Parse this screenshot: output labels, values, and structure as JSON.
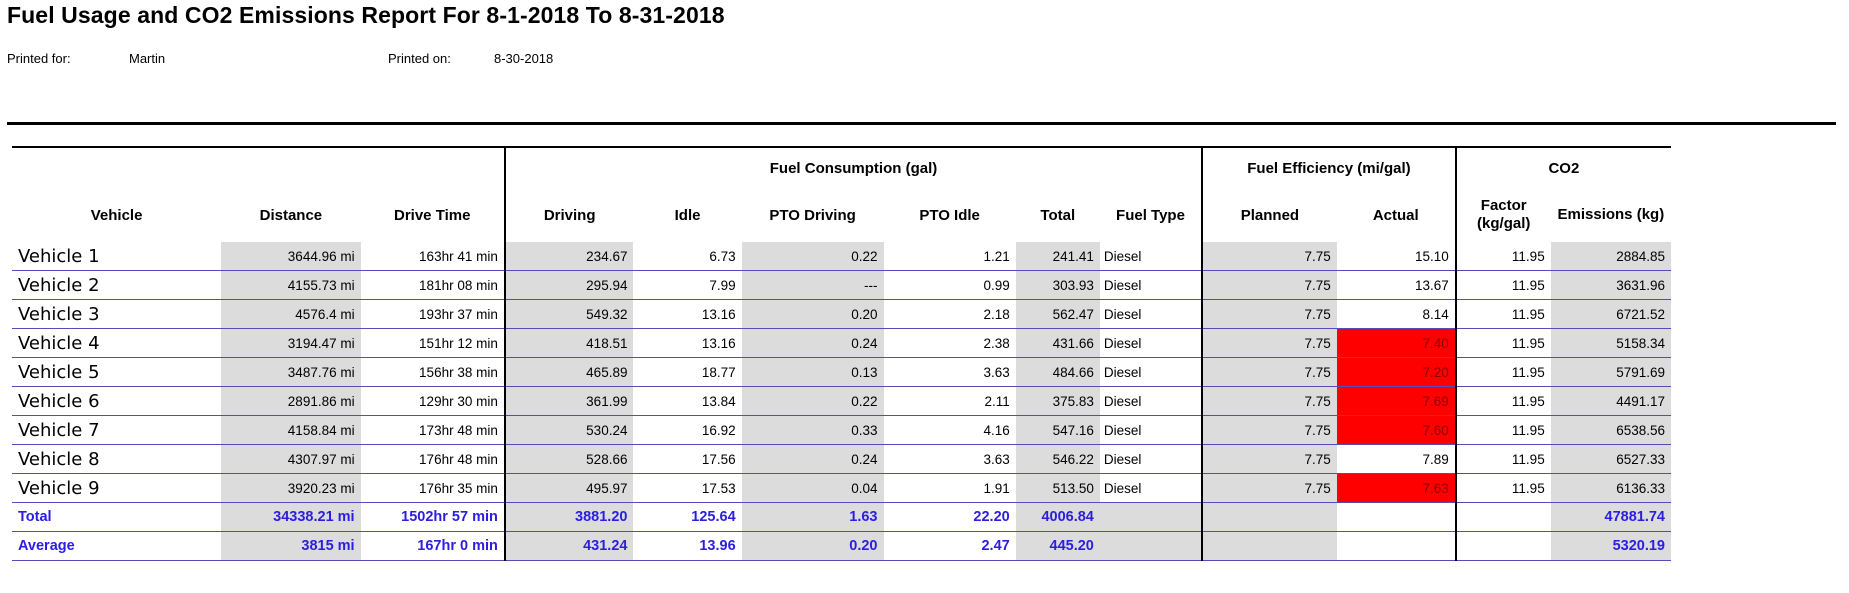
{
  "title": "Fuel Usage and CO2 Emissions Report For 8-1-2018 To 8-31-2018",
  "printed_for_label": "Printed for:",
  "printed_for_value": "Martin",
  "printed_on_label": "Printed on:",
  "printed_on_value": "8-30-2018",
  "headers": {
    "group_fuel_consumption": "Fuel Consumption (gal)",
    "group_fuel_efficiency": "Fuel Efficiency (mi/gal)",
    "group_co2": "CO2",
    "vehicle": "Vehicle",
    "distance": "Distance",
    "drive_time": "Drive Time",
    "driving": "Driving",
    "idle": "Idle",
    "pto_driving": "PTO Driving",
    "pto_idle": "PTO Idle",
    "total": "Total",
    "fuel_type": "Fuel Type",
    "planned": "Planned",
    "actual": "Actual",
    "factor": "Factor (kg/gal)",
    "emissions": "Emissions (kg)"
  },
  "colors": {
    "below_planned_highlight": "#ff0000",
    "summary_text": "#2b1ee0",
    "shaded_cell": "#dcdcdc"
  },
  "rows": [
    {
      "vehicle": "Vehicle 1",
      "distance": "3644.96 mi",
      "drive_time": "163hr 41 min",
      "driving": "234.67",
      "idle": "6.73",
      "pto_driving": "0.22",
      "pto_idle": "1.21",
      "total": "241.41",
      "fuel_type": "Diesel",
      "planned": "7.75",
      "actual": "15.10",
      "factor": "11.95",
      "emissions": "2884.85",
      "below_planned": false
    },
    {
      "vehicle": "Vehicle 2",
      "distance": "4155.73 mi",
      "drive_time": "181hr 08 min",
      "driving": "295.94",
      "idle": "7.99",
      "pto_driving": "---",
      "pto_idle": "0.99",
      "total": "303.93",
      "fuel_type": "Diesel",
      "planned": "7.75",
      "actual": "13.67",
      "factor": "11.95",
      "emissions": "3631.96",
      "below_planned": false
    },
    {
      "vehicle": "Vehicle 3",
      "distance": "4576.4 mi",
      "drive_time": "193hr 37 min",
      "driving": "549.32",
      "idle": "13.16",
      "pto_driving": "0.20",
      "pto_idle": "2.18",
      "total": "562.47",
      "fuel_type": "Diesel",
      "planned": "7.75",
      "actual": "8.14",
      "factor": "11.95",
      "emissions": "6721.52",
      "below_planned": false
    },
    {
      "vehicle": "Vehicle 4",
      "distance": "3194.47 mi",
      "drive_time": "151hr 12 min",
      "driving": "418.51",
      "idle": "13.16",
      "pto_driving": "0.24",
      "pto_idle": "2.38",
      "total": "431.66",
      "fuel_type": "Diesel",
      "planned": "7.75",
      "actual": "7.40",
      "factor": "11.95",
      "emissions": "5158.34",
      "below_planned": true
    },
    {
      "vehicle": "Vehicle 5",
      "distance": "3487.76 mi",
      "drive_time": "156hr 38 min",
      "driving": "465.89",
      "idle": "18.77",
      "pto_driving": "0.13",
      "pto_idle": "3.63",
      "total": "484.66",
      "fuel_type": "Diesel",
      "planned": "7.75",
      "actual": "7.20",
      "factor": "11.95",
      "emissions": "5791.69",
      "below_planned": true
    },
    {
      "vehicle": "Vehicle 6",
      "distance": "2891.86 mi",
      "drive_time": "129hr 30 min",
      "driving": "361.99",
      "idle": "13.84",
      "pto_driving": "0.22",
      "pto_idle": "2.11",
      "total": "375.83",
      "fuel_type": "Diesel",
      "planned": "7.75",
      "actual": "7.69",
      "factor": "11.95",
      "emissions": "4491.17",
      "below_planned": true
    },
    {
      "vehicle": "Vehicle 7",
      "distance": "4158.84 mi",
      "drive_time": "173hr 48 min",
      "driving": "530.24",
      "idle": "16.92",
      "pto_driving": "0.33",
      "pto_idle": "4.16",
      "total": "547.16",
      "fuel_type": "Diesel",
      "planned": "7.75",
      "actual": "7.60",
      "factor": "11.95",
      "emissions": "6538.56",
      "below_planned": true
    },
    {
      "vehicle": "Vehicle 8",
      "distance": "4307.97 mi",
      "drive_time": "176hr 48 min",
      "driving": "528.66",
      "idle": "17.56",
      "pto_driving": "0.24",
      "pto_idle": "3.63",
      "total": "546.22",
      "fuel_type": "Diesel",
      "planned": "7.75",
      "actual": "7.89",
      "factor": "11.95",
      "emissions": "6527.33",
      "below_planned": false
    },
    {
      "vehicle": "Vehicle 9",
      "distance": "3920.23 mi",
      "drive_time": "176hr 35 min",
      "driving": "495.97",
      "idle": "17.53",
      "pto_driving": "0.04",
      "pto_idle": "1.91",
      "total": "513.50",
      "fuel_type": "Diesel",
      "planned": "7.75",
      "actual": "7.63",
      "factor": "11.95",
      "emissions": "6136.33",
      "below_planned": true
    }
  ],
  "summary": [
    {
      "label": "Total",
      "distance": "34338.21 mi",
      "drive_time": "1502hr 57 min",
      "driving": "3881.20",
      "idle": "125.64",
      "pto_driving": "1.63",
      "pto_idle": "22.20",
      "total": "4006.84",
      "emissions": "47881.74"
    },
    {
      "label": "Average",
      "distance": "3815 mi",
      "drive_time": "167hr 0 min",
      "driving": "431.24",
      "idle": "13.96",
      "pto_driving": "0.20",
      "pto_idle": "2.47",
      "total": "445.20",
      "emissions": "5320.19"
    }
  ]
}
